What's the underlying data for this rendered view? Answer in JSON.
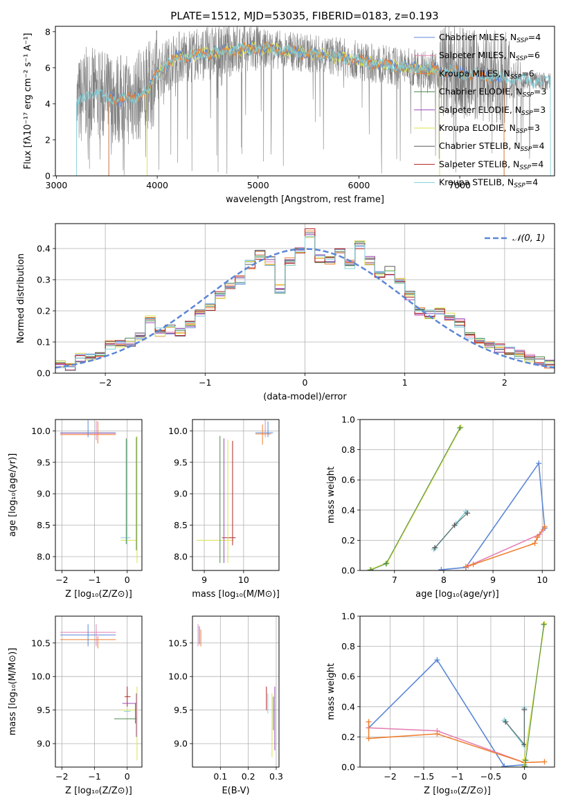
{
  "title": "PLATE=1512, MJD=53035, FIBERID=0183, z=0.193",
  "colors": {
    "chabrier_miles": "#5b86d6",
    "salpeter_miles": "#e483b4",
    "kroupa_miles": "#ef7f2f",
    "chabrier_elodie": "#4c8a4c",
    "salpeter_elodie": "#9a48b8",
    "kroupa_elodie": "#dbe04a",
    "chabrier_stelib": "#5a5a5a",
    "salpeter_stelib": "#b22222",
    "kroupa_stelib": "#7fd0d8",
    "spectrum": "#808080",
    "grid": "#b0b0b0"
  },
  "legend": [
    {
      "key": "chabrier_miles",
      "label": "Chabrier MILES, N",
      "sub": "SSP",
      "suffix": "=4"
    },
    {
      "key": "salpeter_miles",
      "label": "Salpeter MILES, N",
      "sub": "SSP",
      "suffix": "=6"
    },
    {
      "key": "kroupa_miles",
      "label": "Kroupa MILES, N",
      "sub": "SSP",
      "suffix": "=6"
    },
    {
      "key": "chabrier_elodie",
      "label": "Chabrier ELODIE, N",
      "sub": "SSP",
      "suffix": "=3"
    },
    {
      "key": "salpeter_elodie",
      "label": "Salpeter ELODIE, N",
      "sub": "SSP",
      "suffix": "=3"
    },
    {
      "key": "kroupa_elodie",
      "label": "Kroupa ELODIE, N",
      "sub": "SSP",
      "suffix": "=3"
    },
    {
      "key": "chabrier_stelib",
      "label": "Chabrier STELIB, N",
      "sub": "SSP",
      "suffix": "=4"
    },
    {
      "key": "salpeter_stelib",
      "label": "Salpeter STELIB, N",
      "sub": "SSP",
      "suffix": "=4"
    },
    {
      "key": "kroupa_stelib",
      "label": "Kroupa STELIB, N",
      "sub": "SSP",
      "suffix": "=4"
    }
  ],
  "chart_data": [
    {
      "id": "spectrum",
      "type": "line",
      "xlabel": "wavelength [Angstrom, rest frame]",
      "ylabel": "Flux [fλ10⁻¹⁷ erg cm⁻² s⁻¹ A⁻¹]",
      "xlim": [
        2990,
        7940
      ],
      "ylim": [
        0,
        8.3
      ],
      "xticks": [
        3000,
        4000,
        5000,
        6000,
        7000
      ],
      "yticks": [
        0,
        2,
        4,
        6,
        8
      ],
      "continuum": {
        "x": [
          3200,
          3300,
          3500,
          3700,
          3900,
          4000,
          4200,
          4500,
          4800,
          5000,
          5200,
          5500,
          5800,
          6000,
          6200,
          6500,
          6800,
          7000,
          7300,
          7500,
          7900
        ],
        "y": [
          3.9,
          4.6,
          4.4,
          4.2,
          4.7,
          5.7,
          6.6,
          6.8,
          7.0,
          7.1,
          7.0,
          6.8,
          6.6,
          6.4,
          6.2,
          6.0,
          5.9,
          5.7,
          5.5,
          5.4,
          5.2
        ]
      }
    },
    {
      "id": "residuals",
      "type": "histogram",
      "xlabel": "(data-model)/error",
      "ylabel": "Normed distribution",
      "xlim": [
        -2.5,
        2.5
      ],
      "ylim": [
        0,
        0.48
      ],
      "xticks": [
        -2,
        -1,
        0,
        1,
        2
      ],
      "yticks": [
        0.0,
        0.1,
        0.2,
        0.3,
        0.4
      ],
      "legend_label": "𝒩(0, 1)",
      "bin_edges": [
        -2.5,
        -2.4,
        -2.3,
        -2.2,
        -2.1,
        -2.0,
        -1.9,
        -1.8,
        -1.7,
        -1.6,
        -1.5,
        -1.4,
        -1.3,
        -1.2,
        -1.1,
        -1.0,
        -0.9,
        -0.8,
        -0.7,
        -0.6,
        -0.5,
        -0.4,
        -0.3,
        -0.2,
        -0.1,
        0.0,
        0.1,
        0.2,
        0.3,
        0.4,
        0.5,
        0.6,
        0.7,
        0.8,
        0.9,
        1.0,
        1.1,
        1.2,
        1.3,
        1.4,
        1.5,
        1.6,
        1.7,
        1.8,
        1.9,
        2.0,
        2.1,
        2.2,
        2.3,
        2.4,
        2.5
      ],
      "heights": [
        0.03,
        0.02,
        0.05,
        0.05,
        0.06,
        0.09,
        0.09,
        0.1,
        0.12,
        0.17,
        0.13,
        0.14,
        0.13,
        0.16,
        0.19,
        0.21,
        0.25,
        0.28,
        0.3,
        0.35,
        0.38,
        0.36,
        0.27,
        0.36,
        0.4,
        0.45,
        0.37,
        0.36,
        0.4,
        0.35,
        0.41,
        0.36,
        0.32,
        0.33,
        0.3,
        0.25,
        0.2,
        0.19,
        0.2,
        0.18,
        0.16,
        0.12,
        0.11,
        0.09,
        0.08,
        0.07,
        0.06,
        0.05,
        0.04,
        0.03
      ]
    },
    {
      "id": "age_vs_Z",
      "type": "errorbar",
      "xlabel": "Z [log₁₀(Z/Z⊙)]",
      "ylabel": "age  [log₁₀(age/yr)]",
      "xlim": [
        -2.2,
        0.45
      ],
      "ylim": [
        7.78,
        10.18
      ],
      "xticks": [
        -2,
        -1,
        0
      ],
      "yticks": [
        8.0,
        8.5,
        9.0,
        9.5,
        10.0
      ]
    },
    {
      "id": "age_vs_mass",
      "type": "errorbar",
      "xlabel": "mass [log₁₀(M/M⊙)]",
      "xlim": [
        8.7,
        10.9
      ],
      "ylim": [
        7.78,
        10.18
      ],
      "xticks": [
        9,
        10
      ],
      "yticks": [
        8.0,
        8.5,
        9.0,
        9.5,
        10.0
      ]
    },
    {
      "id": "massweight_vs_age",
      "type": "line",
      "xlabel": "age  [log₁₀(age/yr)]",
      "ylabel": "mass weight",
      "xlim": [
        6.3,
        10.25
      ],
      "ylim": [
        0.0,
        1.0
      ],
      "xticks": [
        7,
        8,
        9,
        10
      ],
      "yticks": [
        0.0,
        0.2,
        0.4,
        0.6,
        0.8,
        1.0
      ]
    },
    {
      "id": "mass_vs_Z",
      "type": "errorbar",
      "xlabel": "Z [log₁₀(Z/Z⊙)]",
      "ylabel": "mass [log₁₀(M/M⊙)]",
      "xlim": [
        -2.2,
        0.45
      ],
      "ylim": [
        8.65,
        10.9
      ],
      "xticks": [
        -2,
        -1,
        0
      ],
      "yticks": [
        9.0,
        9.5,
        10.0,
        10.5
      ]
    },
    {
      "id": "mass_vs_ebv",
      "type": "errorbar",
      "xlabel": "E(B-V)",
      "xlim": [
        0.0,
        0.31
      ],
      "ylim": [
        8.65,
        10.9
      ],
      "xticks": [
        0.1,
        0.2,
        0.3
      ],
      "yticks": [
        9.0,
        9.5,
        10.0,
        10.5
      ]
    },
    {
      "id": "massweight_vs_Z",
      "type": "line",
      "xlabel": "Z [log₁₀(Z/Z⊙)]",
      "ylabel": "mass weight",
      "xlim": [
        -2.45,
        0.45
      ],
      "ylim": [
        0.0,
        1.0
      ],
      "xticks": [
        -2.0,
        -1.5,
        -1.0,
        -0.5,
        0.0
      ],
      "yticks": [
        0.0,
        0.2,
        0.4,
        0.6,
        0.8,
        1.0
      ]
    }
  ]
}
